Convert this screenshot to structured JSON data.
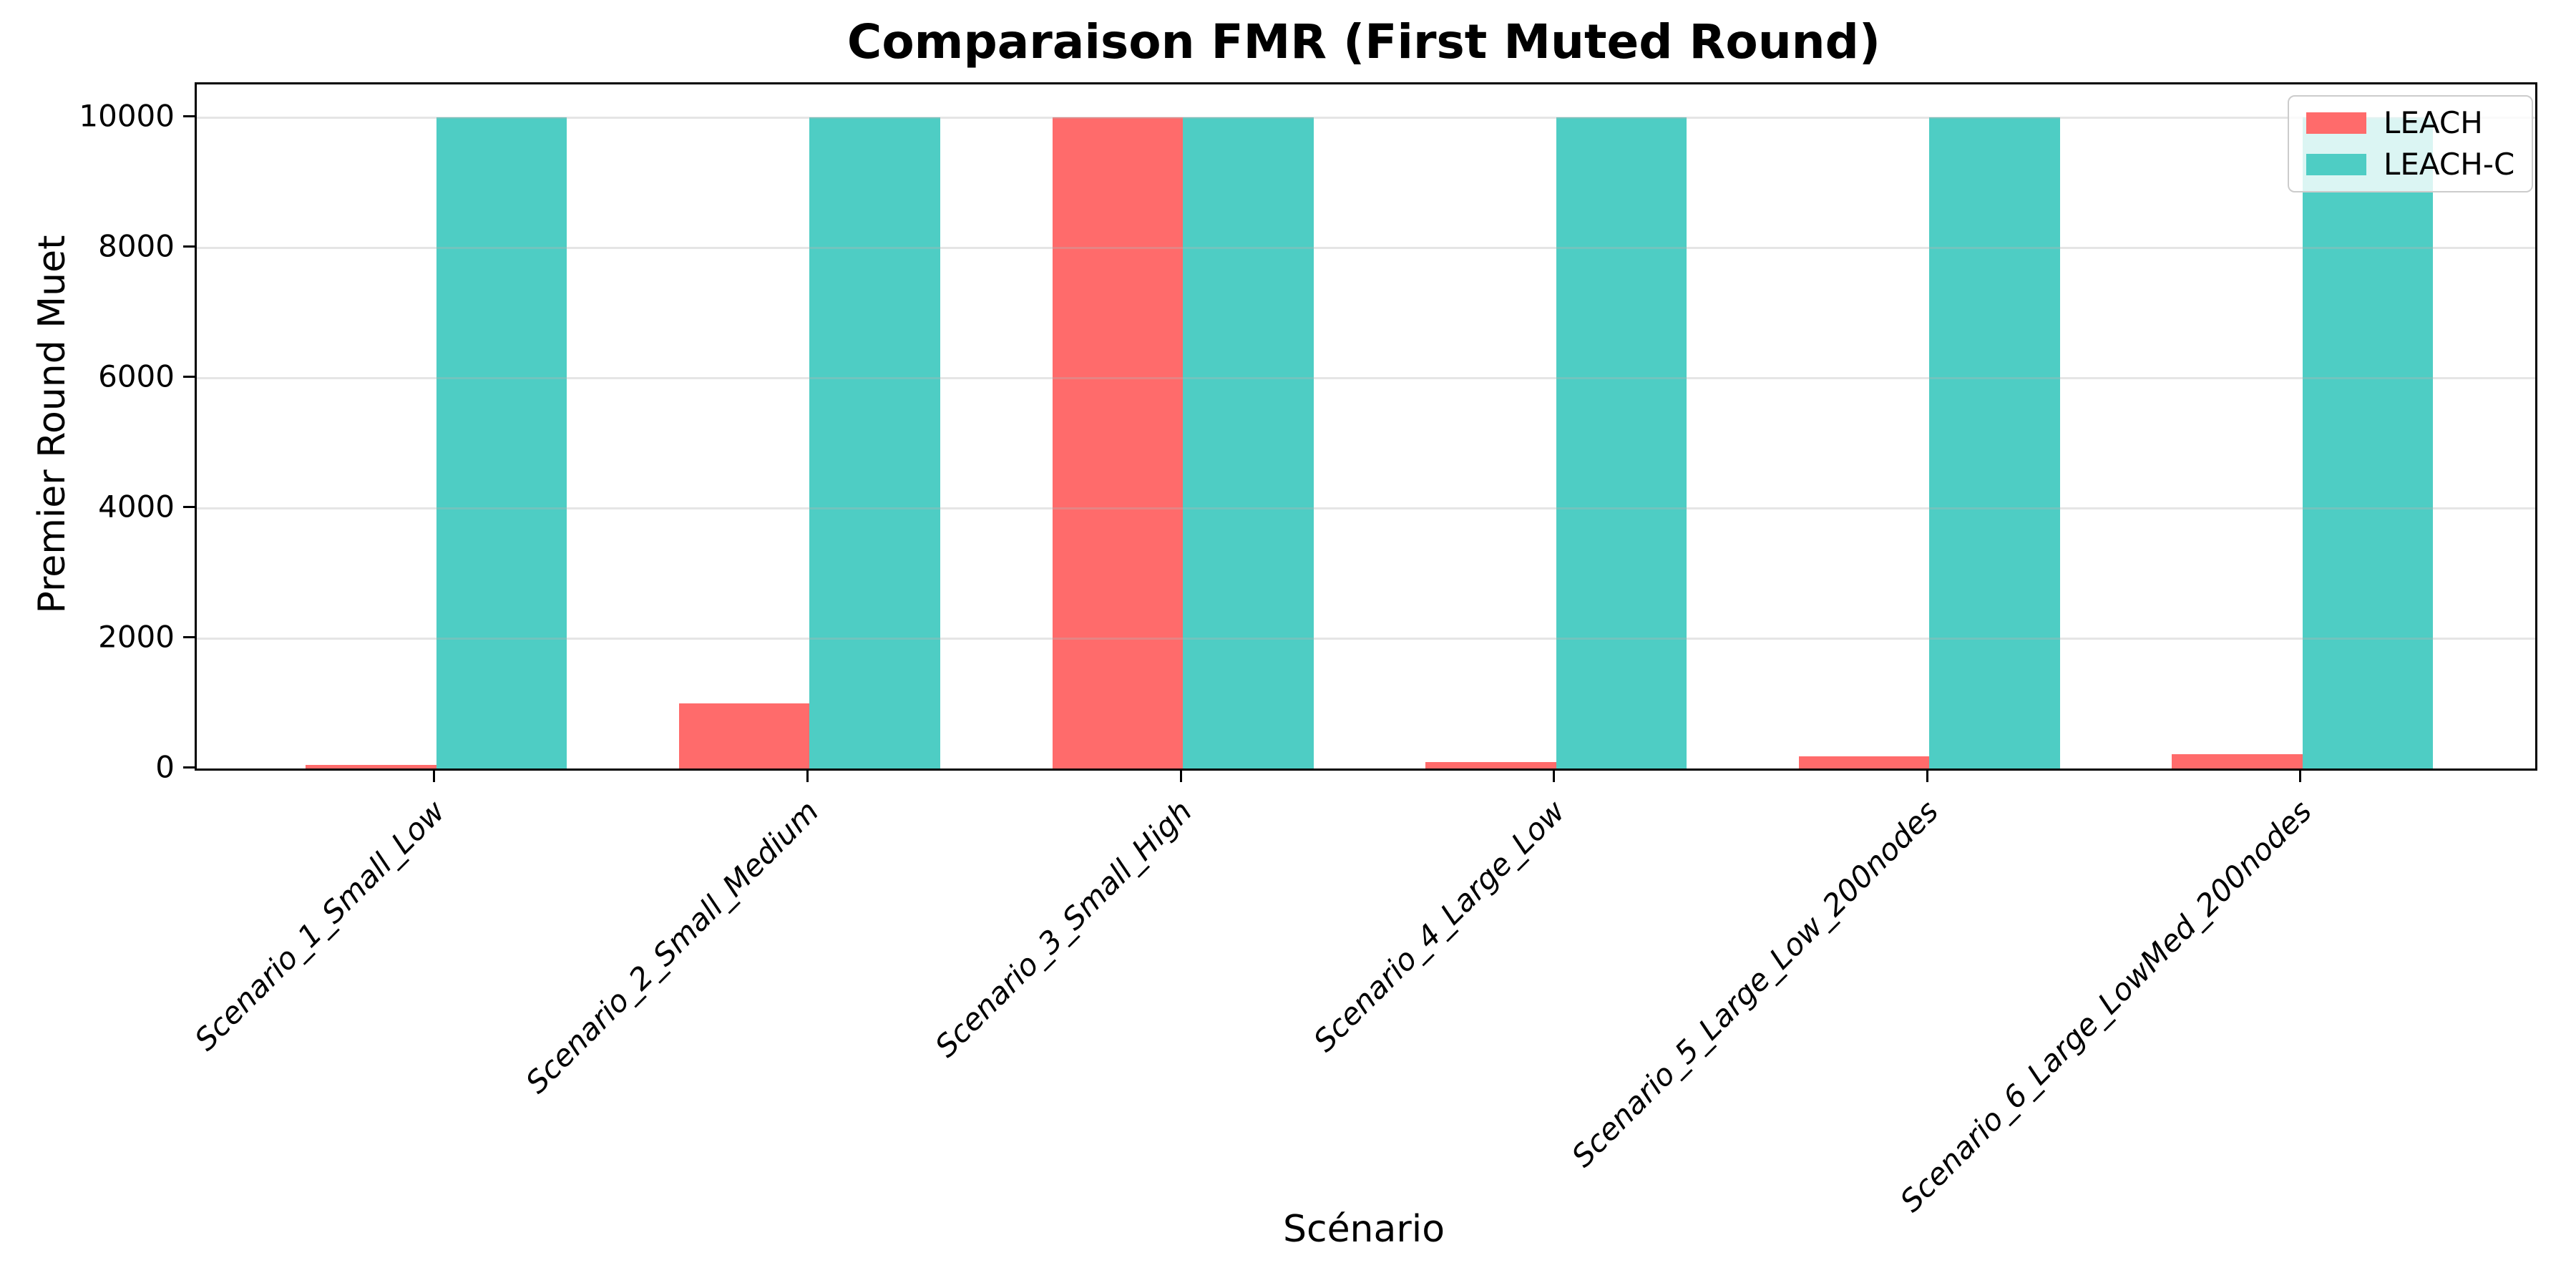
{
  "figure": {
    "title": "Comparaison FMR (First Muted Round)",
    "xlabel": "Scénario",
    "ylabel": "Premier Round Muet"
  },
  "legend": {
    "items": [
      {
        "label": "LEACH",
        "color": "#FF6B6B"
      },
      {
        "label": "LEACH-C",
        "color": "#4ECDC4"
      }
    ]
  },
  "chart_data": {
    "type": "bar",
    "title": "Comparaison FMR (First Muted Round)",
    "xlabel": "Scénario",
    "ylabel": "Premier Round Muet",
    "categories": [
      "Scenario_1_Small_Low",
      "Scenario_2_Small_Medium",
      "Scenario_3_Small_High",
      "Scenario_4_Large_Low",
      "Scenario_5_Large_Low_200nodes",
      "Scenario_6_Large_LowMed_200nodes"
    ],
    "series": [
      {
        "name": "LEACH",
        "color": "#FF6B6B",
        "values": [
          50,
          1000,
          10000,
          100,
          190,
          220
        ]
      },
      {
        "name": "LEACH-C",
        "color": "#4ECDC4",
        "values": [
          10000,
          10000,
          10000,
          10000,
          10000,
          10000
        ]
      }
    ],
    "ylim": [
      0,
      10500
    ],
    "yticks": [
      0,
      2000,
      4000,
      6000,
      8000,
      10000
    ],
    "grid": true,
    "grid_axis": "y",
    "legend_position": "upper right",
    "x_tick_rotation": 45,
    "x_tick_style": "italic",
    "bar_width_fraction": 0.35
  }
}
